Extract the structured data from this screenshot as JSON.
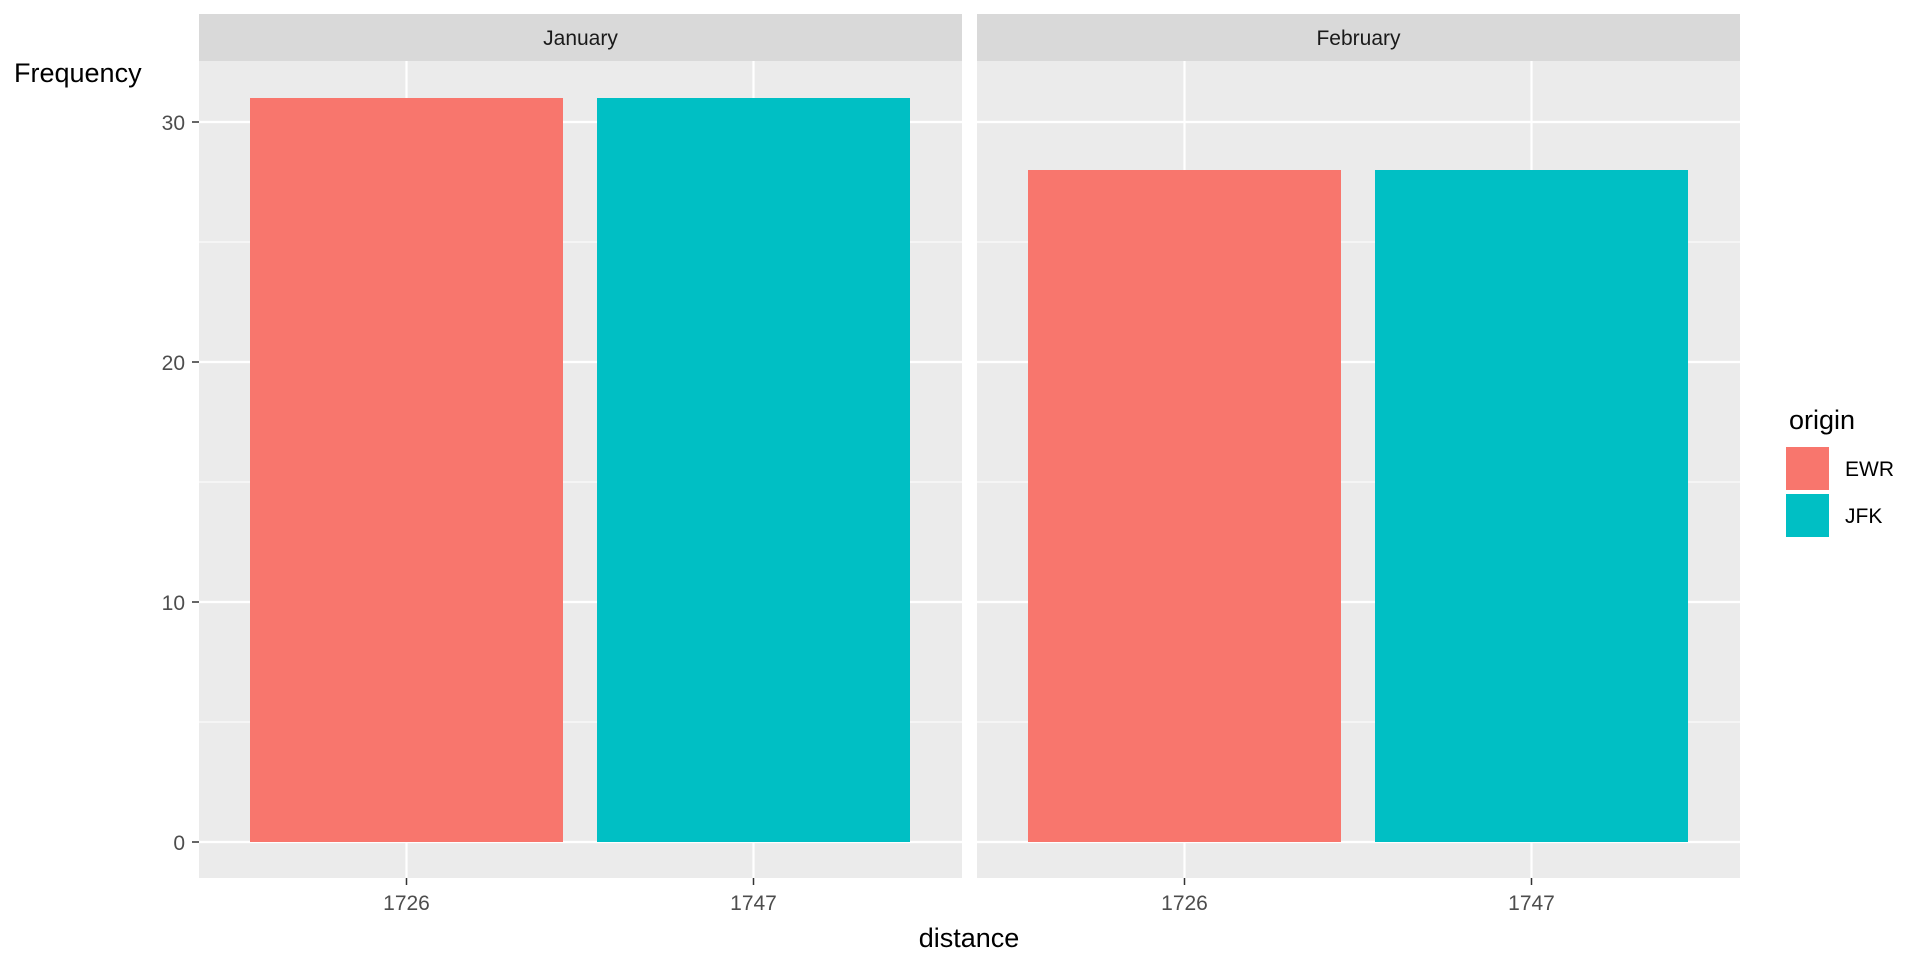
{
  "chart_data": {
    "type": "bar",
    "panels": [
      {
        "label": "January",
        "bars": [
          {
            "x": "1726",
            "origin": "EWR",
            "value": 31
          },
          {
            "x": "1747",
            "origin": "JFK",
            "value": 31
          }
        ]
      },
      {
        "label": "February",
        "bars": [
          {
            "x": "1726",
            "origin": "EWR",
            "value": 28
          },
          {
            "x": "1747",
            "origin": "JFK",
            "value": 28
          }
        ]
      }
    ],
    "categories": [
      "1726",
      "1747"
    ],
    "xlabel": "distance",
    "ylabel": "Frequency",
    "ylim": [
      0,
      31
    ],
    "yticks": [
      0,
      10,
      20,
      30
    ],
    "grid": true,
    "legend": {
      "title": "origin",
      "position": "right",
      "items": [
        {
          "label": "EWR",
          "color": "#F8766D"
        },
        {
          "label": "JFK",
          "color": "#00BFC4"
        }
      ]
    }
  }
}
